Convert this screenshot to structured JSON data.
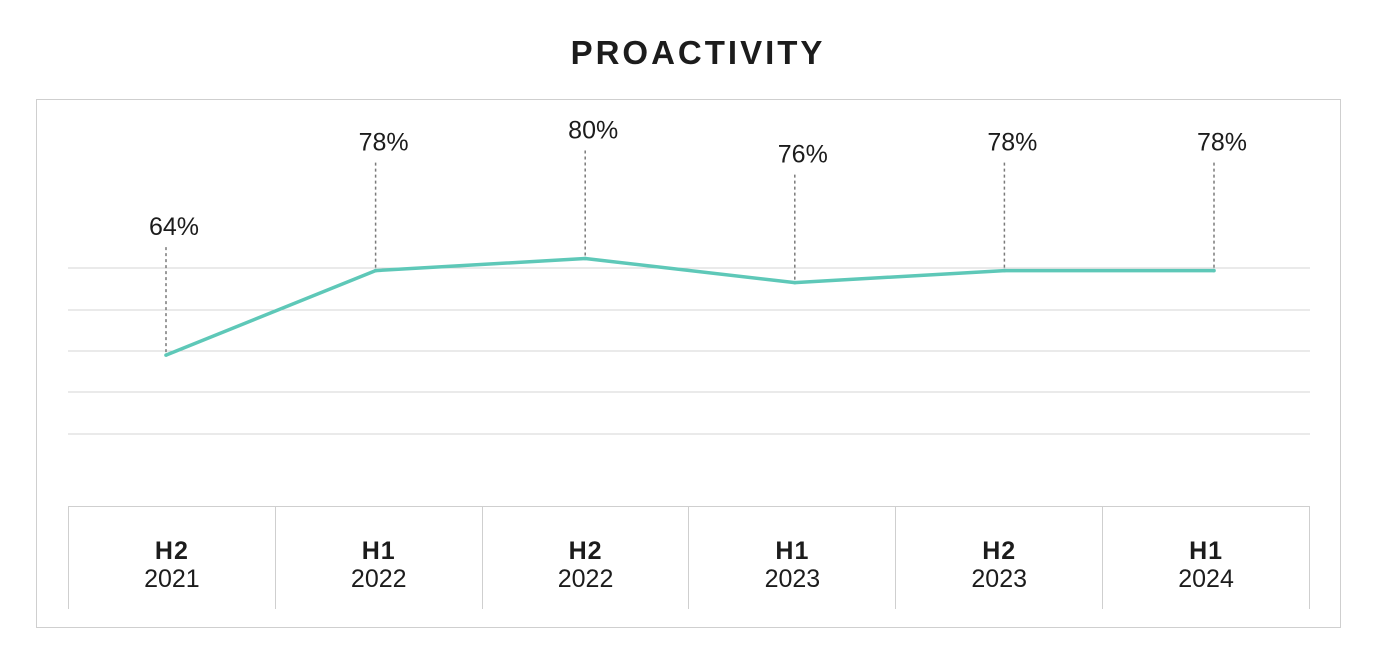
{
  "chart_data": {
    "type": "line",
    "title": "PROACTIVITY",
    "categories": [
      {
        "half": "H2",
        "year": "2021"
      },
      {
        "half": "H1",
        "year": "2022"
      },
      {
        "half": "H2",
        "year": "2022"
      },
      {
        "half": "H1",
        "year": "2023"
      },
      {
        "half": "H2",
        "year": "2023"
      },
      {
        "half": "H1",
        "year": "2024"
      }
    ],
    "values": [
      64,
      78,
      80,
      76,
      78,
      78
    ],
    "data_labels": [
      "64%",
      "78%",
      "80%",
      "76%",
      "78%",
      "78%"
    ],
    "ylim": [
      44,
      92
    ],
    "grid": true,
    "line_color": "#5ec8b8"
  }
}
